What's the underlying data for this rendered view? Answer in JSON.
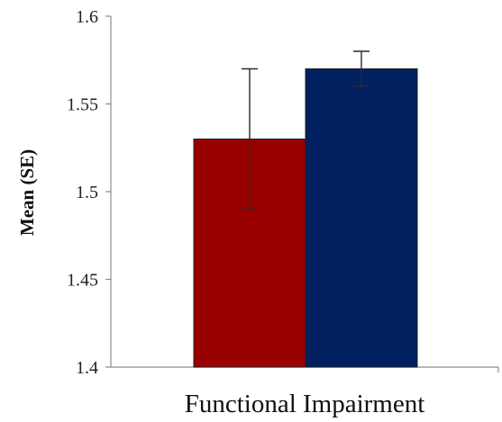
{
  "chart_data": {
    "type": "bar",
    "title": "",
    "xlabel": "Functional Impairment",
    "ylabel": "Mean (SE)",
    "ylim": [
      1.4,
      1.6
    ],
    "yticks": [
      1.4,
      1.45,
      1.5,
      1.55,
      1.6
    ],
    "ytick_labels": [
      "1.4",
      "1.45",
      "1.5",
      "1.55",
      "1.6"
    ],
    "grid": false,
    "legend": "none",
    "categories": [
      "Functional Impairment"
    ],
    "series": [
      {
        "values": [
          1.53
        ],
        "error": [
          0.04
        ],
        "color": "#990000"
      },
      {
        "values": [
          1.57
        ],
        "error": [
          0.01
        ],
        "color": "#002060"
      }
    ]
  }
}
